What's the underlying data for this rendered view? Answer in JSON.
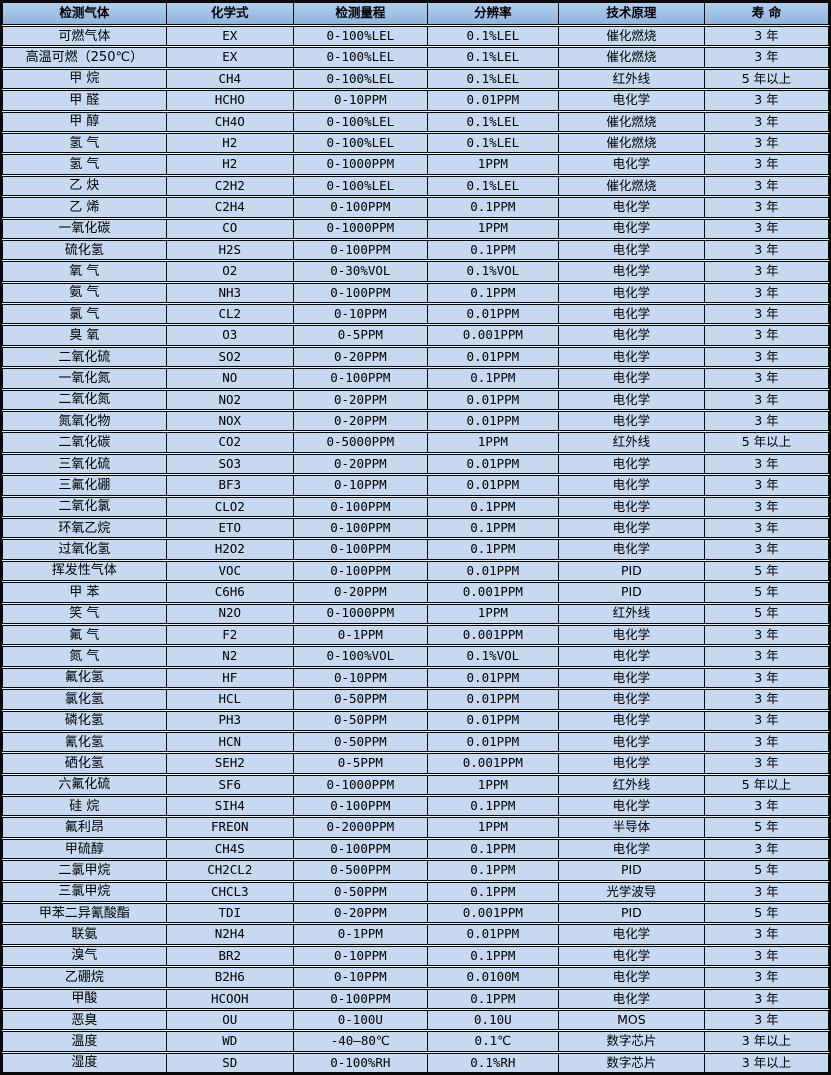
{
  "colors": {
    "border-color": "#0a0a0a",
    "header-bg-top": "#b3cfee",
    "header-bg-bottom": "#8fb4dd",
    "row-bg": "#c6d9f0",
    "text-color": "#000000"
  },
  "table": {
    "columns": [
      {
        "key": "gas",
        "label": "检测气体"
      },
      {
        "key": "formula",
        "label": "化学式"
      },
      {
        "key": "range",
        "label": "检测量程"
      },
      {
        "key": "resolution",
        "label": "分辨率"
      },
      {
        "key": "principle",
        "label": "技术原理"
      },
      {
        "key": "lifespan",
        "label": "寿 命"
      }
    ],
    "rows": [
      [
        "可燃气体",
        "EX",
        "0-100%LEL",
        "0.1%LEL",
        "催化燃烧",
        "3 年"
      ],
      [
        "高温可燃（250℃）",
        "EX",
        "0-100%LEL",
        "0.1%LEL",
        "催化燃烧",
        "3 年"
      ],
      [
        "甲 烷",
        "CH4",
        "0-100%LEL",
        "0.1%LEL",
        "红外线",
        "5 年以上"
      ],
      [
        "甲 醛",
        "HCHO",
        "0-10PPM",
        "0.01PPM",
        "电化学",
        "3 年"
      ],
      [
        "甲 醇",
        "CH4O",
        "0-100%LEL",
        "0.1%LEL",
        "催化燃烧",
        "3 年"
      ],
      [
        "氢 气",
        "H2",
        "0-100%LEL",
        "0.1%LEL",
        "催化燃烧",
        "3 年"
      ],
      [
        "氢 气",
        "H2",
        "0-1000PPM",
        "1PPM",
        "电化学",
        "3 年"
      ],
      [
        "乙 炔",
        "C2H2",
        "0-100%LEL",
        "0.1%LEL",
        "催化燃烧",
        "3 年"
      ],
      [
        "乙 烯",
        "C2H4",
        "0-100PPM",
        "0.1PPM",
        "电化学",
        "3 年"
      ],
      [
        "一氧化碳",
        "CO",
        "0-1000PPM",
        "1PPM",
        "电化学",
        "3 年"
      ],
      [
        "硫化氢",
        "H2S",
        "0-100PPM",
        "0.1PPM",
        "电化学",
        "3 年"
      ],
      [
        "氧 气",
        "O2",
        "0-30%VOL",
        "0.1%VOL",
        "电化学",
        "3 年"
      ],
      [
        "氨 气",
        "NH3",
        "0-100PPM",
        "0.1PPM",
        "电化学",
        "3 年"
      ],
      [
        "氯 气",
        "CL2",
        "0-10PPM",
        "0.01PPM",
        "电化学",
        "3 年"
      ],
      [
        "臭 氧",
        "O3",
        "0-5PPM",
        "0.001PPM",
        "电化学",
        "3 年"
      ],
      [
        "二氧化硫",
        "SO2",
        "0-20PPM",
        "0.01PPM",
        "电化学",
        "3 年"
      ],
      [
        "一氧化氮",
        "NO",
        "0-100PPM",
        "0.1PPM",
        "电化学",
        "3 年"
      ],
      [
        "二氧化氮",
        "NO2",
        "0-20PPM",
        "0.01PPM",
        "电化学",
        "3 年"
      ],
      [
        "氮氧化物",
        "NOX",
        "0-20PPM",
        "0.01PPM",
        "电化学",
        "3 年"
      ],
      [
        "二氧化碳",
        "CO2",
        "0-5000PPM",
        "1PPM",
        "红外线",
        "5 年以上"
      ],
      [
        "三氧化硫",
        "SO3",
        "0-20PPM",
        "0.01PPM",
        "电化学",
        "3 年"
      ],
      [
        "三氟化硼",
        "BF3",
        "0-10PPM",
        "0.01PPM",
        "电化学",
        "3 年"
      ],
      [
        "二氧化氯",
        "CLO2",
        "0-100PPM",
        "0.1PPM",
        "电化学",
        "3 年"
      ],
      [
        "环氧乙烷",
        "ETO",
        "0-100PPM",
        "0.1PPM",
        "电化学",
        "3 年"
      ],
      [
        "过氧化氢",
        "H2O2",
        "0-100PPM",
        "0.1PPM",
        "电化学",
        "3 年"
      ],
      [
        "挥发性气体",
        "VOC",
        "0-100PPM",
        "0.01PPM",
        "PID",
        "5 年"
      ],
      [
        "甲 苯",
        "C6H6",
        "0-20PPM",
        "0.001PPM",
        "PID",
        "5 年"
      ],
      [
        "笑 气",
        "N2O",
        "0-1000PPM",
        "1PPM",
        "红外线",
        "5 年"
      ],
      [
        "氟 气",
        "F2",
        "0-1PPM",
        "0.001PPM",
        "电化学",
        "3 年"
      ],
      [
        "氮 气",
        "N2",
        "0-100%VOL",
        "0.1%VOL",
        "电化学",
        "3 年"
      ],
      [
        "氟化氢",
        "HF",
        "0-10PPM",
        "0.01PPM",
        "电化学",
        "3 年"
      ],
      [
        "氯化氢",
        "HCL",
        "0-50PPM",
        "0.01PPM",
        "电化学",
        "3 年"
      ],
      [
        "磷化氢",
        "PH3",
        "0-50PPM",
        "0.01PPM",
        "电化学",
        "3 年"
      ],
      [
        "氰化氢",
        "HCN",
        "0-50PPM",
        "0.01PPM",
        "电化学",
        "3 年"
      ],
      [
        "硒化氢",
        "SEH2",
        "0-5PPM",
        "0.001PPM",
        "电化学",
        "3 年"
      ],
      [
        "六氟化硫",
        "SF6",
        "0-1000PPM",
        "1PPM",
        "红外线",
        "5 年以上"
      ],
      [
        "硅 烷",
        "SIH4",
        "0-100PPM",
        "0.1PPM",
        "电化学",
        "3 年"
      ],
      [
        "氟利昂",
        "FREON",
        "0-2000PPM",
        "1PPM",
        "半导体",
        "5 年"
      ],
      [
        "甲硫醇",
        "CH4S",
        "0-100PPM",
        "0.1PPM",
        "电化学",
        "3 年"
      ],
      [
        "二氯甲烷",
        "CH2CL2",
        "0-500PPM",
        "0.1PPM",
        "PID",
        "5 年"
      ],
      [
        "三氯甲烷",
        "CHCL3",
        "0-50PPM",
        "0.1PPM",
        "光学波导",
        "3 年"
      ],
      [
        "甲苯二异氰酸酯",
        "TDI",
        "0-20PPM",
        "0.001PPM",
        "PID",
        "5 年"
      ],
      [
        "联氨",
        "N2H4",
        "0-1PPM",
        "0.01PPM",
        "电化学",
        "3 年"
      ],
      [
        "溴气",
        "BR2",
        "0-10PPM",
        "0.1PPM",
        "电化学",
        "3 年"
      ],
      [
        "乙硼烷",
        "B2H6",
        "0-10PPM",
        "0.0100M",
        "电化学",
        "3 年"
      ],
      [
        "甲酸",
        "HCOOH",
        "0-100PPM",
        "0.1PPM",
        "电化学",
        "3 年"
      ],
      [
        "恶臭",
        "OU",
        "0-100U",
        "0.10U",
        "MOS",
        "3 年"
      ],
      [
        "温度",
        "WD",
        "-40—80℃",
        "0.1℃",
        "数字芯片",
        "3 年以上"
      ],
      [
        "湿度",
        "SD",
        "0-100%RH",
        "0.1%RH",
        "数字芯片",
        "3 年以上"
      ]
    ]
  }
}
